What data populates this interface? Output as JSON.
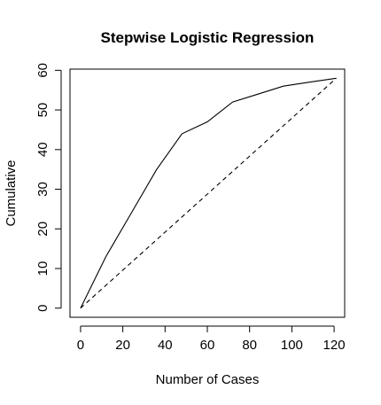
{
  "chart_data": {
    "type": "line",
    "title": "Stepwise Logistic Regression",
    "xlabel": "Number of Cases",
    "ylabel": "Cumulative",
    "xlim": [
      -5,
      125
    ],
    "ylim": [
      -2.3,
      60.3
    ],
    "xticks": [
      0,
      20,
      40,
      60,
      80,
      100,
      120
    ],
    "yticks": [
      0,
      10,
      20,
      30,
      40,
      50,
      60
    ],
    "grid": false,
    "legend": "none",
    "series": [
      {
        "style": "solid",
        "x": [
          0,
          12,
          24,
          36,
          48,
          60,
          72,
          84,
          96,
          108,
          121
        ],
        "y": [
          0,
          13,
          24,
          35,
          44,
          47,
          52,
          54,
          56,
          57,
          58
        ]
      },
      {
        "style": "dashed",
        "x": [
          0,
          121
        ],
        "y": [
          0,
          58
        ]
      }
    ],
    "colors": {
      "line": "#000000",
      "background": "#ffffff"
    }
  }
}
